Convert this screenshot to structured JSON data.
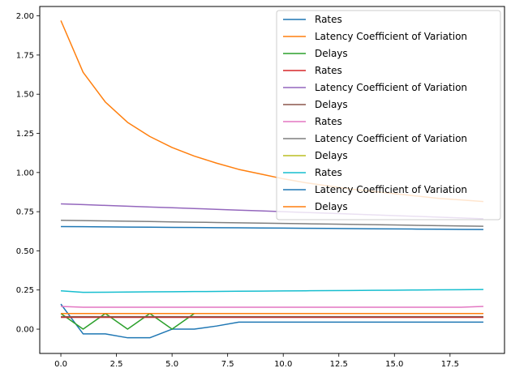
{
  "chart_data": {
    "type": "line",
    "x": [
      0,
      1,
      2,
      3,
      4,
      5,
      6,
      7,
      8,
      9,
      10,
      11,
      12,
      13,
      14,
      15,
      16,
      17,
      18,
      19
    ],
    "xlim": [
      -0.95,
      19.95
    ],
    "ylim": [
      -0.155,
      2.06
    ],
    "x_ticks": [
      0.0,
      2.5,
      5.0,
      7.5,
      10.0,
      12.5,
      15.0,
      17.5
    ],
    "x_tick_labels": [
      "0.0",
      "2.5",
      "5.0",
      "7.5",
      "10.0",
      "12.5",
      "15.0",
      "17.5"
    ],
    "y_ticks": [
      0.0,
      0.25,
      0.5,
      0.75,
      1.0,
      1.25,
      1.5,
      1.75,
      2.0
    ],
    "y_tick_labels": [
      "0.00",
      "0.25",
      "0.50",
      "0.75",
      "1.00",
      "1.25",
      "1.50",
      "1.75",
      "2.00"
    ],
    "grid": false,
    "legend_position": "top-right",
    "series": [
      {
        "name": "Rates",
        "color": "#1f77b4",
        "values": [
          0.16,
          -0.03,
          -0.03,
          -0.055,
          -0.055,
          0.0,
          0.0,
          0.02,
          0.045,
          0.045,
          0.045,
          0.045,
          0.045,
          0.045,
          0.045,
          0.045,
          0.045,
          0.045,
          0.045,
          0.045
        ]
      },
      {
        "name": "Latency Coefficient of Variation",
        "color": "#ff7f0e",
        "values": [
          1.97,
          1.64,
          1.45,
          1.32,
          1.23,
          1.16,
          1.105,
          1.06,
          1.02,
          0.99,
          0.96,
          0.935,
          0.915,
          0.895,
          0.88,
          0.865,
          0.85,
          0.835,
          0.825,
          0.815
        ]
      },
      {
        "name": "Delays",
        "color": "#2ca02c",
        "values": [
          0.1,
          0.0,
          0.1,
          0.0,
          0.1,
          0.0,
          0.1,
          0.1,
          0.1,
          0.1,
          0.1,
          0.1,
          0.1,
          0.1,
          0.1,
          0.1,
          0.1,
          0.1,
          0.1,
          0.1
        ]
      },
      {
        "name": "Rates",
        "color": "#d62728",
        "values": [
          0.075,
          0.075,
          0.075,
          0.075,
          0.075,
          0.075,
          0.075,
          0.075,
          0.075,
          0.075,
          0.075,
          0.075,
          0.075,
          0.075,
          0.075,
          0.075,
          0.075,
          0.075,
          0.075,
          0.075
        ]
      },
      {
        "name": "Latency Coefficient of Variation",
        "color": "#9467bd",
        "values": [
          0.8,
          0.795,
          0.79,
          0.785,
          0.78,
          0.775,
          0.77,
          0.765,
          0.76,
          0.755,
          0.75,
          0.745,
          0.74,
          0.735,
          0.73,
          0.725,
          0.72,
          0.715,
          0.71,
          0.705
        ]
      },
      {
        "name": "Delays",
        "color": "#8c564b",
        "values": [
          0.08,
          0.08,
          0.08,
          0.08,
          0.08,
          0.08,
          0.08,
          0.08,
          0.08,
          0.08,
          0.08,
          0.08,
          0.08,
          0.08,
          0.08,
          0.08,
          0.08,
          0.08,
          0.08,
          0.08
        ]
      },
      {
        "name": "Rates",
        "color": "#e377c2",
        "values": [
          0.145,
          0.14,
          0.14,
          0.14,
          0.14,
          0.14,
          0.14,
          0.14,
          0.14,
          0.14,
          0.14,
          0.14,
          0.14,
          0.14,
          0.14,
          0.14,
          0.14,
          0.14,
          0.14,
          0.145
        ]
      },
      {
        "name": "Latency Coefficient of Variation",
        "color": "#7f7f7f",
        "values": [
          0.695,
          0.693,
          0.691,
          0.689,
          0.687,
          0.685,
          0.683,
          0.681,
          0.679,
          0.677,
          0.675,
          0.673,
          0.671,
          0.669,
          0.667,
          0.665,
          0.663,
          0.661,
          0.659,
          0.657
        ]
      },
      {
        "name": "Delays",
        "color": "#bcbd22",
        "values": [
          0.1,
          0.1,
          0.1,
          0.1,
          0.1,
          0.1,
          0.1,
          0.1,
          0.1,
          0.1,
          0.1,
          0.1,
          0.1,
          0.1,
          0.1,
          0.1,
          0.1,
          0.1,
          0.1,
          0.1
        ]
      },
      {
        "name": "Rates",
        "color": "#17becf",
        "values": [
          0.245,
          0.235,
          0.236,
          0.237,
          0.238,
          0.239,
          0.24,
          0.241,
          0.242,
          0.243,
          0.244,
          0.245,
          0.246,
          0.247,
          0.248,
          0.249,
          0.25,
          0.251,
          0.252,
          0.253
        ]
      },
      {
        "name": "Latency Coefficient of Variation",
        "color": "#1f77b4",
        "values": [
          0.655,
          0.654,
          0.653,
          0.652,
          0.651,
          0.65,
          0.649,
          0.648,
          0.647,
          0.646,
          0.645,
          0.644,
          0.643,
          0.642,
          0.641,
          0.64,
          0.639,
          0.638,
          0.637,
          0.636
        ]
      },
      {
        "name": "Delays",
        "color": "#ff7f0e",
        "values": [
          0.1,
          0.1,
          0.1,
          0.1,
          0.1,
          0.1,
          0.1,
          0.1,
          0.1,
          0.1,
          0.1,
          0.1,
          0.1,
          0.1,
          0.1,
          0.1,
          0.1,
          0.1,
          0.1,
          0.1
        ]
      }
    ]
  }
}
